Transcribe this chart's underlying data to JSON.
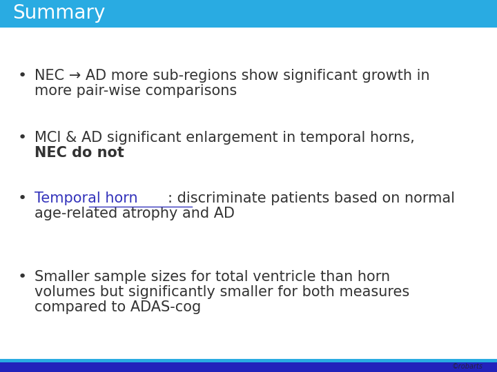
{
  "title": "Summary",
  "title_bg_color": "#29ABE2",
  "title_bg_top_color": "#00CFFF",
  "title_text_color": "#FFFFFF",
  "title_fontsize": 20,
  "bg_color": "#FFFFFF",
  "bullet_color": "#333333",
  "bullet_fontsize": 15,
  "bottom_bar_color": "#2222BB",
  "bottom_bar2_color": "#29ABE2",
  "bullets": [
    {
      "lines": [
        "NEC → AD more sub-regions show significant growth in",
        "more pair-wise comparisons"
      ],
      "bold_line_idx": -1,
      "link_word": null
    },
    {
      "lines": [
        "MCI & AD significant enlargement in temporal horns,",
        "NEC do not"
      ],
      "bold_line_idx": 1,
      "link_word": null
    },
    {
      "lines": [
        "Temporal horn: discriminate patients based on normal",
        "age-related atrophy and AD"
      ],
      "bold_line_idx": -1,
      "link_word": "Temporal horn"
    },
    {
      "lines": [
        "Smaller sample sizes for total ventricle than horn",
        "volumes but significantly smaller for both measures",
        "compared to ADAS-cog"
      ],
      "bold_line_idx": -1,
      "link_word": null
    }
  ]
}
